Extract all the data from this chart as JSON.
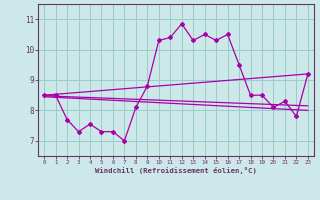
{
  "xlabel": "Windchill (Refroidissement éolien,°C)",
  "ylabel": "",
  "xlim": [
    -0.5,
    23.5
  ],
  "ylim": [
    6.5,
    11.5
  ],
  "yticks": [
    7,
    8,
    9,
    10,
    11
  ],
  "xticks": [
    0,
    1,
    2,
    3,
    4,
    5,
    6,
    7,
    8,
    9,
    10,
    11,
    12,
    13,
    14,
    15,
    16,
    17,
    18,
    19,
    20,
    21,
    22,
    23
  ],
  "bg_color": "#cce8e8",
  "grid_color": "#99cccc",
  "line_color": "#aa00aa",
  "spine_color": "#663366",
  "line1_x": [
    0,
    1,
    2,
    3,
    4,
    5,
    6,
    7,
    8,
    9,
    10,
    11,
    12,
    13,
    14,
    15,
    16,
    17,
    18,
    19,
    20,
    21,
    22,
    23
  ],
  "line1_y": [
    8.5,
    8.5,
    7.7,
    7.3,
    7.55,
    7.3,
    7.3,
    7.0,
    8.1,
    8.8,
    10.3,
    10.4,
    10.85,
    10.3,
    10.5,
    10.3,
    10.5,
    9.5,
    8.5,
    8.5,
    8.1,
    8.3,
    7.8,
    9.2
  ],
  "line2_x": [
    0,
    23
  ],
  "line2_y": [
    8.5,
    9.2
  ],
  "line3_x": [
    0,
    23
  ],
  "line3_y": [
    8.48,
    8.15
  ],
  "line4_x": [
    0,
    23
  ],
  "line4_y": [
    8.45,
    8.0
  ]
}
